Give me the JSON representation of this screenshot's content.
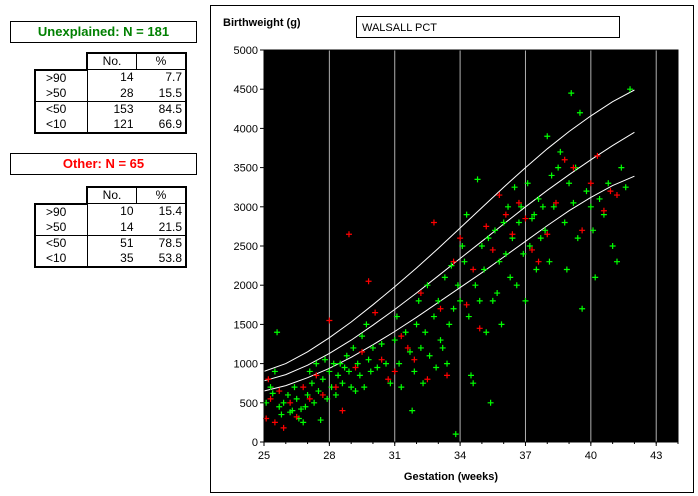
{
  "unexplained": {
    "title": "Unexplained: N = 181",
    "headers": [
      "No.",
      "%"
    ],
    "rows": [
      {
        "label": ">90",
        "no": "14",
        "pct": "7.7"
      },
      {
        "label": ">50",
        "no": "28",
        "pct": "15.5"
      },
      {
        "label": "<50",
        "no": "153",
        "pct": "84.5"
      },
      {
        "label": "<10",
        "no": "121",
        "pct": "66.9"
      }
    ]
  },
  "other": {
    "title": "Other: N = 65",
    "headers": [
      "No.",
      "%"
    ],
    "rows": [
      {
        "label": ">90",
        "no": "10",
        "pct": "15.4"
      },
      {
        "label": ">50",
        "no": "14",
        "pct": "21.5"
      },
      {
        "label": "<50",
        "no": "51",
        "pct": "78.5"
      },
      {
        "label": "<10",
        "no": "35",
        "pct": "53.8"
      }
    ]
  },
  "region": "WALSALL PCT",
  "chart_data": {
    "type": "scatter",
    "ylabel": "Birthweight (g)",
    "xlabel": "Gestation (weeks)",
    "xlim": [
      25,
      44
    ],
    "ylim": [
      0,
      5000
    ],
    "xticks": [
      25,
      28,
      31,
      34,
      37,
      40,
      43
    ],
    "yticks": [
      0,
      500,
      1000,
      1500,
      2000,
      2500,
      3000,
      3500,
      4000,
      4500,
      5000
    ],
    "vgrid": [
      28,
      31,
      34,
      37,
      40,
      43
    ],
    "colors": {
      "background": "#000000",
      "unexplained": "#00ff00",
      "other": "#ff0000",
      "centile": "#ffffff",
      "grid": "#b0b0b0"
    },
    "centiles": [
      {
        "name": "90th",
        "x": [
          25,
          26,
          27,
          28,
          29,
          30,
          31,
          32,
          33,
          34,
          35,
          36,
          37,
          38,
          39,
          40,
          41,
          42
        ],
        "y": [
          900,
          1000,
          1150,
          1330,
          1530,
          1750,
          1980,
          2220,
          2470,
          2730,
          2990,
          3250,
          3500,
          3740,
          3960,
          4160,
          4340,
          4490
        ]
      },
      {
        "name": "50th",
        "x": [
          25,
          26,
          27,
          28,
          29,
          30,
          31,
          32,
          33,
          34,
          35,
          36,
          37,
          38,
          39,
          40,
          41,
          42
        ],
        "y": [
          780,
          860,
          980,
          1130,
          1300,
          1490,
          1690,
          1900,
          2120,
          2340,
          2560,
          2780,
          3000,
          3210,
          3410,
          3600,
          3780,
          3950
        ]
      },
      {
        "name": "10th",
        "x": [
          25,
          26,
          27,
          28,
          29,
          30,
          31,
          32,
          33,
          34,
          35,
          36,
          37,
          38,
          39,
          40,
          41,
          42
        ],
        "y": [
          650,
          720,
          820,
          940,
          1080,
          1240,
          1410,
          1590,
          1780,
          1970,
          2160,
          2360,
          2560,
          2760,
          2950,
          3120,
          3270,
          3390
        ]
      }
    ],
    "series": [
      {
        "name": "unexplained",
        "points": [
          [
            25.1,
            500
          ],
          [
            25.3,
            700
          ],
          [
            25.4,
            620
          ],
          [
            25.5,
            900
          ],
          [
            25.6,
            1400
          ],
          [
            25.7,
            450
          ],
          [
            25.8,
            350
          ],
          [
            25.9,
            500
          ],
          [
            26.1,
            600
          ],
          [
            26.2,
            380
          ],
          [
            26.3,
            400
          ],
          [
            26.4,
            700
          ],
          [
            26.5,
            550
          ],
          [
            26.6,
            300
          ],
          [
            26.7,
            420
          ],
          [
            26.8,
            250
          ],
          [
            26.9,
            450
          ],
          [
            27.0,
            600
          ],
          [
            27.1,
            900
          ],
          [
            27.2,
            750
          ],
          [
            27.3,
            500
          ],
          [
            27.4,
            1000
          ],
          [
            27.5,
            650
          ],
          [
            27.6,
            280
          ],
          [
            27.7,
            800
          ],
          [
            27.8,
            1050
          ],
          [
            27.9,
            550
          ],
          [
            28.0,
            900
          ],
          [
            28.1,
            700
          ],
          [
            28.2,
            1000
          ],
          [
            28.3,
            600
          ],
          [
            28.4,
            850
          ],
          [
            28.5,
            1000
          ],
          [
            28.6,
            750
          ],
          [
            28.7,
            950
          ],
          [
            28.8,
            1100
          ],
          [
            28.9,
            900
          ],
          [
            29.0,
            700
          ],
          [
            29.1,
            1200
          ],
          [
            29.2,
            650
          ],
          [
            29.3,
            1000
          ],
          [
            29.4,
            850
          ],
          [
            29.5,
            1350
          ],
          [
            29.6,
            700
          ],
          [
            29.7,
            1500
          ],
          [
            29.8,
            1050
          ],
          [
            29.9,
            900
          ],
          [
            30.0,
            1200
          ],
          [
            30.2,
            950
          ],
          [
            30.4,
            1250
          ],
          [
            30.6,
            1000
          ],
          [
            30.8,
            750
          ],
          [
            31.0,
            1300
          ],
          [
            31.1,
            1600
          ],
          [
            31.2,
            1000
          ],
          [
            31.3,
            700
          ],
          [
            31.5,
            1400
          ],
          [
            31.7,
            1150
          ],
          [
            31.8,
            400
          ],
          [
            31.9,
            900
          ],
          [
            32.0,
            1500
          ],
          [
            32.1,
            1800
          ],
          [
            32.2,
            1200
          ],
          [
            32.3,
            750
          ],
          [
            32.4,
            1400
          ],
          [
            32.5,
            2000
          ],
          [
            32.6,
            1100
          ],
          [
            32.8,
            1600
          ],
          [
            32.9,
            950
          ],
          [
            33.0,
            1800
          ],
          [
            33.1,
            1300
          ],
          [
            33.2,
            1200
          ],
          [
            33.3,
            2100
          ],
          [
            33.4,
            1000
          ],
          [
            33.5,
            1500
          ],
          [
            33.6,
            2250
          ],
          [
            33.7,
            1700
          ],
          [
            33.8,
            100
          ],
          [
            33.9,
            2000
          ],
          [
            34.0,
            1800
          ],
          [
            34.1,
            2500
          ],
          [
            34.2,
            2300
          ],
          [
            34.3,
            2900
          ],
          [
            34.4,
            1600
          ],
          [
            34.5,
            850
          ],
          [
            34.6,
            750
          ],
          [
            34.7,
            2000
          ],
          [
            34.8,
            3350
          ],
          [
            34.9,
            1800
          ],
          [
            35.0,
            2500
          ],
          [
            35.1,
            2200
          ],
          [
            35.2,
            1400
          ],
          [
            35.3,
            2600
          ],
          [
            35.4,
            500
          ],
          [
            35.5,
            1800
          ],
          [
            35.6,
            2700
          ],
          [
            35.7,
            1900
          ],
          [
            35.8,
            2300
          ],
          [
            35.9,
            1500
          ],
          [
            36.0,
            2800
          ],
          [
            36.1,
            2400
          ],
          [
            36.2,
            3000
          ],
          [
            36.3,
            2100
          ],
          [
            36.4,
            2600
          ],
          [
            36.5,
            3250
          ],
          [
            36.6,
            2000
          ],
          [
            36.7,
            2800
          ],
          [
            36.8,
            3000
          ],
          [
            36.9,
            2400
          ],
          [
            37.0,
            1800
          ],
          [
            37.1,
            3300
          ],
          [
            37.2,
            2500
          ],
          [
            37.3,
            2850
          ],
          [
            37.4,
            2900
          ],
          [
            37.5,
            2200
          ],
          [
            37.6,
            3100
          ],
          [
            37.7,
            2600
          ],
          [
            37.8,
            3000
          ],
          [
            37.9,
            2700
          ],
          [
            38.0,
            3900
          ],
          [
            38.1,
            2300
          ],
          [
            38.2,
            3400
          ],
          [
            38.3,
            3000
          ],
          [
            38.5,
            3500
          ],
          [
            38.6,
            3700
          ],
          [
            38.8,
            2800
          ],
          [
            38.9,
            2200
          ],
          [
            39.0,
            3300
          ],
          [
            39.1,
            4450
          ],
          [
            39.2,
            3050
          ],
          [
            39.3,
            3500
          ],
          [
            39.4,
            2600
          ],
          [
            39.5,
            4200
          ],
          [
            39.6,
            1700
          ],
          [
            39.8,
            3200
          ],
          [
            40.0,
            3000
          ],
          [
            40.1,
            2700
          ],
          [
            40.2,
            2100
          ],
          [
            40.4,
            3100
          ],
          [
            40.6,
            2900
          ],
          [
            40.8,
            3300
          ],
          [
            41.0,
            2500
          ],
          [
            41.2,
            2300
          ],
          [
            41.4,
            3500
          ],
          [
            41.6,
            3250
          ],
          [
            41.8,
            4500
          ]
        ]
      },
      {
        "name": "other",
        "points": [
          [
            25.1,
            300
          ],
          [
            25.2,
            800
          ],
          [
            25.3,
            550
          ],
          [
            25.5,
            250
          ],
          [
            25.7,
            650
          ],
          [
            25.9,
            180
          ],
          [
            26.2,
            500
          ],
          [
            26.5,
            320
          ],
          [
            26.8,
            700
          ],
          [
            27.1,
            550
          ],
          [
            27.4,
            850
          ],
          [
            27.7,
            600
          ],
          [
            28.0,
            1550
          ],
          [
            28.3,
            700
          ],
          [
            28.6,
            400
          ],
          [
            28.9,
            2650
          ],
          [
            29.2,
            950
          ],
          [
            29.5,
            1150
          ],
          [
            29.8,
            2050
          ],
          [
            30.1,
            1650
          ],
          [
            30.4,
            1050
          ],
          [
            30.7,
            800
          ],
          [
            31.0,
            900
          ],
          [
            31.3,
            1350
          ],
          [
            31.6,
            1200
          ],
          [
            31.9,
            1050
          ],
          [
            32.2,
            1900
          ],
          [
            32.5,
            800
          ],
          [
            32.8,
            2800
          ],
          [
            33.1,
            1700
          ],
          [
            33.4,
            850
          ],
          [
            33.7,
            2300
          ],
          [
            34.0,
            2600
          ],
          [
            34.3,
            1750
          ],
          [
            34.6,
            2200
          ],
          [
            34.9,
            1450
          ],
          [
            35.2,
            2750
          ],
          [
            35.5,
            2450
          ],
          [
            35.8,
            3150
          ],
          [
            36.1,
            2900
          ],
          [
            36.4,
            2650
          ],
          [
            36.7,
            3050
          ],
          [
            37.0,
            2850
          ],
          [
            37.3,
            2450
          ],
          [
            37.6,
            2300
          ],
          [
            38.0,
            2650
          ],
          [
            38.4,
            3050
          ],
          [
            38.8,
            3600
          ],
          [
            39.2,
            3500
          ],
          [
            39.6,
            2700
          ],
          [
            40.0,
            3300
          ],
          [
            40.3,
            3650
          ],
          [
            40.6,
            2950
          ],
          [
            40.9,
            3200
          ],
          [
            41.2,
            3150
          ]
        ]
      }
    ]
  }
}
